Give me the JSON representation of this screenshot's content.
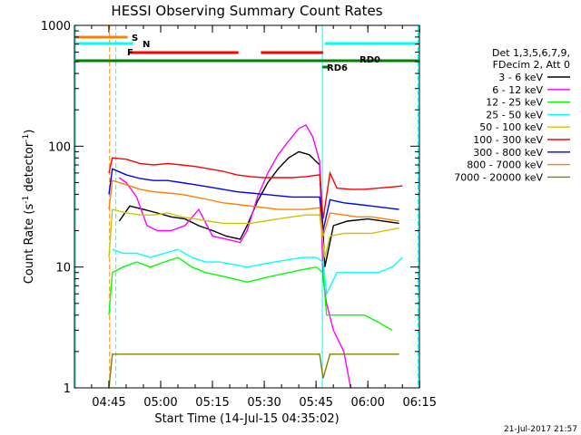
{
  "chart_data": {
    "type": "line",
    "title": "HESSI Observing Summary Count Rates",
    "xlabel": "Start Time (14-Jul-15 04:35:02)",
    "ylabel_main": "Count Rate (s",
    "ylabel_sup1": "-1",
    "ylabel_mid": " detector",
    "ylabel_sup2": "-1",
    "ylabel_end": ")",
    "y_scale": "log",
    "ylim": [
      1,
      1000
    ],
    "xlim_minutes": [
      0,
      99.9
    ],
    "x_ticks": [
      {
        "label": "04:45",
        "min": 9.97
      },
      {
        "label": "05:00",
        "min": 24.97
      },
      {
        "label": "05:15",
        "min": 39.97
      },
      {
        "label": "05:30",
        "min": 54.97
      },
      {
        "label": "05:45",
        "min": 69.97
      },
      {
        "label": "06:00",
        "min": 84.97
      },
      {
        "label": "06:15",
        "min": 99.97
      }
    ],
    "y_ticks": [
      {
        "label": "1",
        "value": 1
      },
      {
        "label": "10",
        "value": 10
      },
      {
        "label": "100",
        "value": 100
      },
      {
        "label": "1000",
        "value": 1000
      }
    ],
    "legend_header": [
      "Det 1,3,5,6,7,9,",
      "FDecim 2, Att 0"
    ],
    "timestamp": "21-Jul-2017 21:57",
    "series": [
      {
        "name": "3 - 6 keV",
        "color": "#000000",
        "points": [
          [
            13,
            24
          ],
          [
            16,
            32
          ],
          [
            20,
            30
          ],
          [
            24,
            28
          ],
          [
            28,
            26
          ],
          [
            32,
            25
          ],
          [
            36,
            22
          ],
          [
            40,
            20
          ],
          [
            44,
            18
          ],
          [
            48,
            17
          ],
          [
            50,
            22
          ],
          [
            53,
            35
          ],
          [
            56,
            50
          ],
          [
            59,
            65
          ],
          [
            62,
            80
          ],
          [
            65,
            90
          ],
          [
            68,
            85
          ],
          [
            71,
            70
          ],
          [
            72.5,
            10
          ],
          [
            75,
            22
          ],
          [
            79,
            24
          ],
          [
            85,
            25
          ],
          [
            94,
            23
          ]
        ]
      },
      {
        "name": "6 - 12 keV",
        "color": "#ff00ff",
        "points": [
          [
            13,
            55
          ],
          [
            15,
            50
          ],
          [
            18,
            38
          ],
          [
            21,
            22
          ],
          [
            24,
            20
          ],
          [
            28,
            20
          ],
          [
            32,
            22
          ],
          [
            36,
            30
          ],
          [
            40,
            18
          ],
          [
            44,
            17
          ],
          [
            48,
            16
          ],
          [
            50,
            20
          ],
          [
            53,
            38
          ],
          [
            56,
            60
          ],
          [
            59,
            85
          ],
          [
            62,
            110
          ],
          [
            65,
            140
          ],
          [
            67,
            150
          ],
          [
            69,
            120
          ],
          [
            71,
            75
          ],
          [
            72,
            8
          ],
          [
            73,
            5
          ],
          [
            75,
            3
          ],
          [
            78,
            2
          ],
          [
            80,
            1
          ]
        ]
      },
      {
        "name": "12 - 25 keV",
        "color": "#00ff00",
        "points": [
          [
            10,
            4
          ],
          [
            11,
            9
          ],
          [
            14,
            10
          ],
          [
            18,
            11
          ],
          [
            22,
            10
          ],
          [
            26,
            11
          ],
          [
            30,
            12
          ],
          [
            34,
            10
          ],
          [
            38,
            9
          ],
          [
            42,
            8.5
          ],
          [
            46,
            8
          ],
          [
            50,
            7.5
          ],
          [
            54,
            8
          ],
          [
            58,
            8.5
          ],
          [
            62,
            9
          ],
          [
            66,
            9.5
          ],
          [
            70,
            10
          ],
          [
            72,
            9
          ],
          [
            73,
            4
          ],
          [
            76,
            4
          ],
          [
            80,
            4
          ],
          [
            84,
            4
          ],
          [
            88,
            3.5
          ],
          [
            92,
            3
          ]
        ]
      },
      {
        "name": "25 - 50 keV",
        "color": "#00ffff",
        "points": [
          [
            11,
            14
          ],
          [
            14,
            13
          ],
          [
            18,
            13
          ],
          [
            22,
            12
          ],
          [
            26,
            13
          ],
          [
            30,
            14
          ],
          [
            34,
            12
          ],
          [
            38,
            11
          ],
          [
            42,
            11
          ],
          [
            46,
            10.5
          ],
          [
            50,
            10
          ],
          [
            54,
            10.5
          ],
          [
            58,
            11
          ],
          [
            62,
            11.5
          ],
          [
            66,
            12
          ],
          [
            70,
            12
          ],
          [
            72,
            11
          ],
          [
            73,
            6
          ],
          [
            76,
            9
          ],
          [
            80,
            9
          ],
          [
            84,
            9
          ],
          [
            88,
            9
          ],
          [
            92,
            10
          ],
          [
            95,
            12
          ]
        ]
      },
      {
        "name": "50 - 100 keV",
        "color": "#c8c800",
        "points": [
          [
            10,
            12
          ],
          [
            11,
            30
          ],
          [
            15,
            28
          ],
          [
            19,
            27
          ],
          [
            23,
            27
          ],
          [
            27,
            28
          ],
          [
            31,
            26
          ],
          [
            35,
            25
          ],
          [
            39,
            24
          ],
          [
            43,
            23
          ],
          [
            47,
            23
          ],
          [
            51,
            23
          ],
          [
            55,
            24
          ],
          [
            59,
            25
          ],
          [
            63,
            26
          ],
          [
            67,
            27
          ],
          [
            71,
            27
          ],
          [
            72.5,
            12
          ],
          [
            74,
            18
          ],
          [
            78,
            19
          ],
          [
            82,
            19
          ],
          [
            86,
            19
          ],
          [
            90,
            20
          ],
          [
            94,
            21
          ]
        ]
      },
      {
        "name": "100 - 300 keV",
        "color": "#ff0000",
        "points": [
          [
            10,
            60
          ],
          [
            11,
            80
          ],
          [
            15,
            78
          ],
          [
            19,
            72
          ],
          [
            23,
            70
          ],
          [
            27,
            72
          ],
          [
            31,
            70
          ],
          [
            35,
            68
          ],
          [
            39,
            65
          ],
          [
            43,
            62
          ],
          [
            47,
            58
          ],
          [
            51,
            56
          ],
          [
            55,
            55
          ],
          [
            59,
            55
          ],
          [
            63,
            55
          ],
          [
            67,
            56
          ],
          [
            71,
            58
          ],
          [
            72,
            25
          ],
          [
            74,
            60
          ],
          [
            76,
            45
          ],
          [
            80,
            44
          ],
          [
            84,
            44
          ],
          [
            88,
            45
          ],
          [
            92,
            46
          ],
          [
            95,
            47
          ]
        ]
      },
      {
        "name": "300 - 800 keV",
        "color": "#0000ff",
        "points": [
          [
            10,
            40
          ],
          [
            11,
            65
          ],
          [
            15,
            58
          ],
          [
            19,
            54
          ],
          [
            23,
            52
          ],
          [
            27,
            52
          ],
          [
            31,
            50
          ],
          [
            35,
            48
          ],
          [
            39,
            46
          ],
          [
            43,
            44
          ],
          [
            47,
            42
          ],
          [
            51,
            41
          ],
          [
            55,
            40
          ],
          [
            59,
            39
          ],
          [
            63,
            38
          ],
          [
            67,
            38
          ],
          [
            71,
            38
          ],
          [
            72,
            20
          ],
          [
            74,
            36
          ],
          [
            78,
            34
          ],
          [
            82,
            33
          ],
          [
            86,
            32
          ],
          [
            90,
            31
          ],
          [
            94,
            30
          ]
        ]
      },
      {
        "name": "800 - 7000 keV",
        "color": "#ff8000",
        "points": [
          [
            10,
            30
          ],
          [
            11,
            52
          ],
          [
            15,
            48
          ],
          [
            19,
            44
          ],
          [
            23,
            42
          ],
          [
            27,
            41
          ],
          [
            31,
            40
          ],
          [
            35,
            38
          ],
          [
            39,
            36
          ],
          [
            43,
            34
          ],
          [
            47,
            33
          ],
          [
            51,
            32
          ],
          [
            55,
            31
          ],
          [
            59,
            30
          ],
          [
            63,
            30
          ],
          [
            67,
            30
          ],
          [
            71,
            31
          ],
          [
            72,
            18
          ],
          [
            74,
            28
          ],
          [
            78,
            27
          ],
          [
            82,
            26
          ],
          [
            86,
            26
          ],
          [
            90,
            25
          ],
          [
            94,
            24
          ]
        ]
      },
      {
        "name": "7000 - 20000 keV",
        "color": "#808000",
        "points": [
          [
            10,
            1
          ],
          [
            11,
            1.9
          ],
          [
            15,
            1.9
          ],
          [
            19,
            1.9
          ],
          [
            23,
            1.9
          ],
          [
            27,
            1.9
          ],
          [
            31,
            1.9
          ],
          [
            35,
            1.9
          ],
          [
            39,
            1.9
          ],
          [
            43,
            1.9
          ],
          [
            47,
            1.9
          ],
          [
            51,
            1.9
          ],
          [
            55,
            1.9
          ],
          [
            59,
            1.9
          ],
          [
            63,
            1.9
          ],
          [
            67,
            1.9
          ],
          [
            71,
            1.9
          ],
          [
            72,
            1.2
          ],
          [
            74,
            1.9
          ],
          [
            78,
            1.9
          ],
          [
            82,
            1.9
          ],
          [
            86,
            1.9
          ],
          [
            90,
            1.9
          ],
          [
            94,
            1.9
          ]
        ]
      }
    ],
    "markers": [
      {
        "label": "S",
        "color": "#ff8000"
      },
      {
        "label": "N",
        "color": "#00ffff"
      },
      {
        "label": "F",
        "color": "#ff0000"
      },
      {
        "label": "RD6",
        "color": "#008000"
      },
      {
        "label": "RD0",
        "color": "#008000"
      }
    ]
  }
}
